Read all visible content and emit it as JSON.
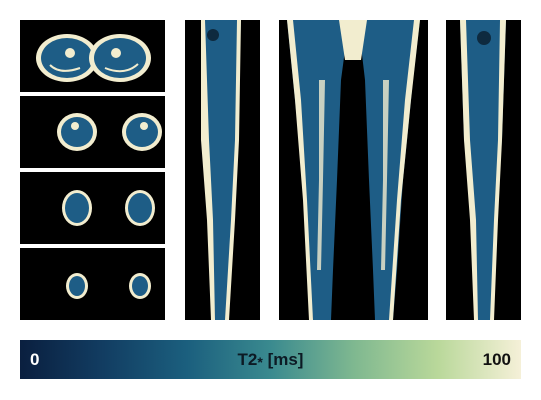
{
  "colorbar": {
    "min_label": "0",
    "max_label": "100",
    "title": "T2",
    "title_sub": "*",
    "unit": "[ms]",
    "gradient": [
      "#0a1f3f",
      "#123d62",
      "#1b5f7e",
      "#3a8a8f",
      "#7fb890",
      "#b9d89a",
      "#f5f0d8"
    ]
  },
  "colors": {
    "muscle": "#1e5d86",
    "fat": "#f2edcf",
    "background": "#000000"
  }
}
